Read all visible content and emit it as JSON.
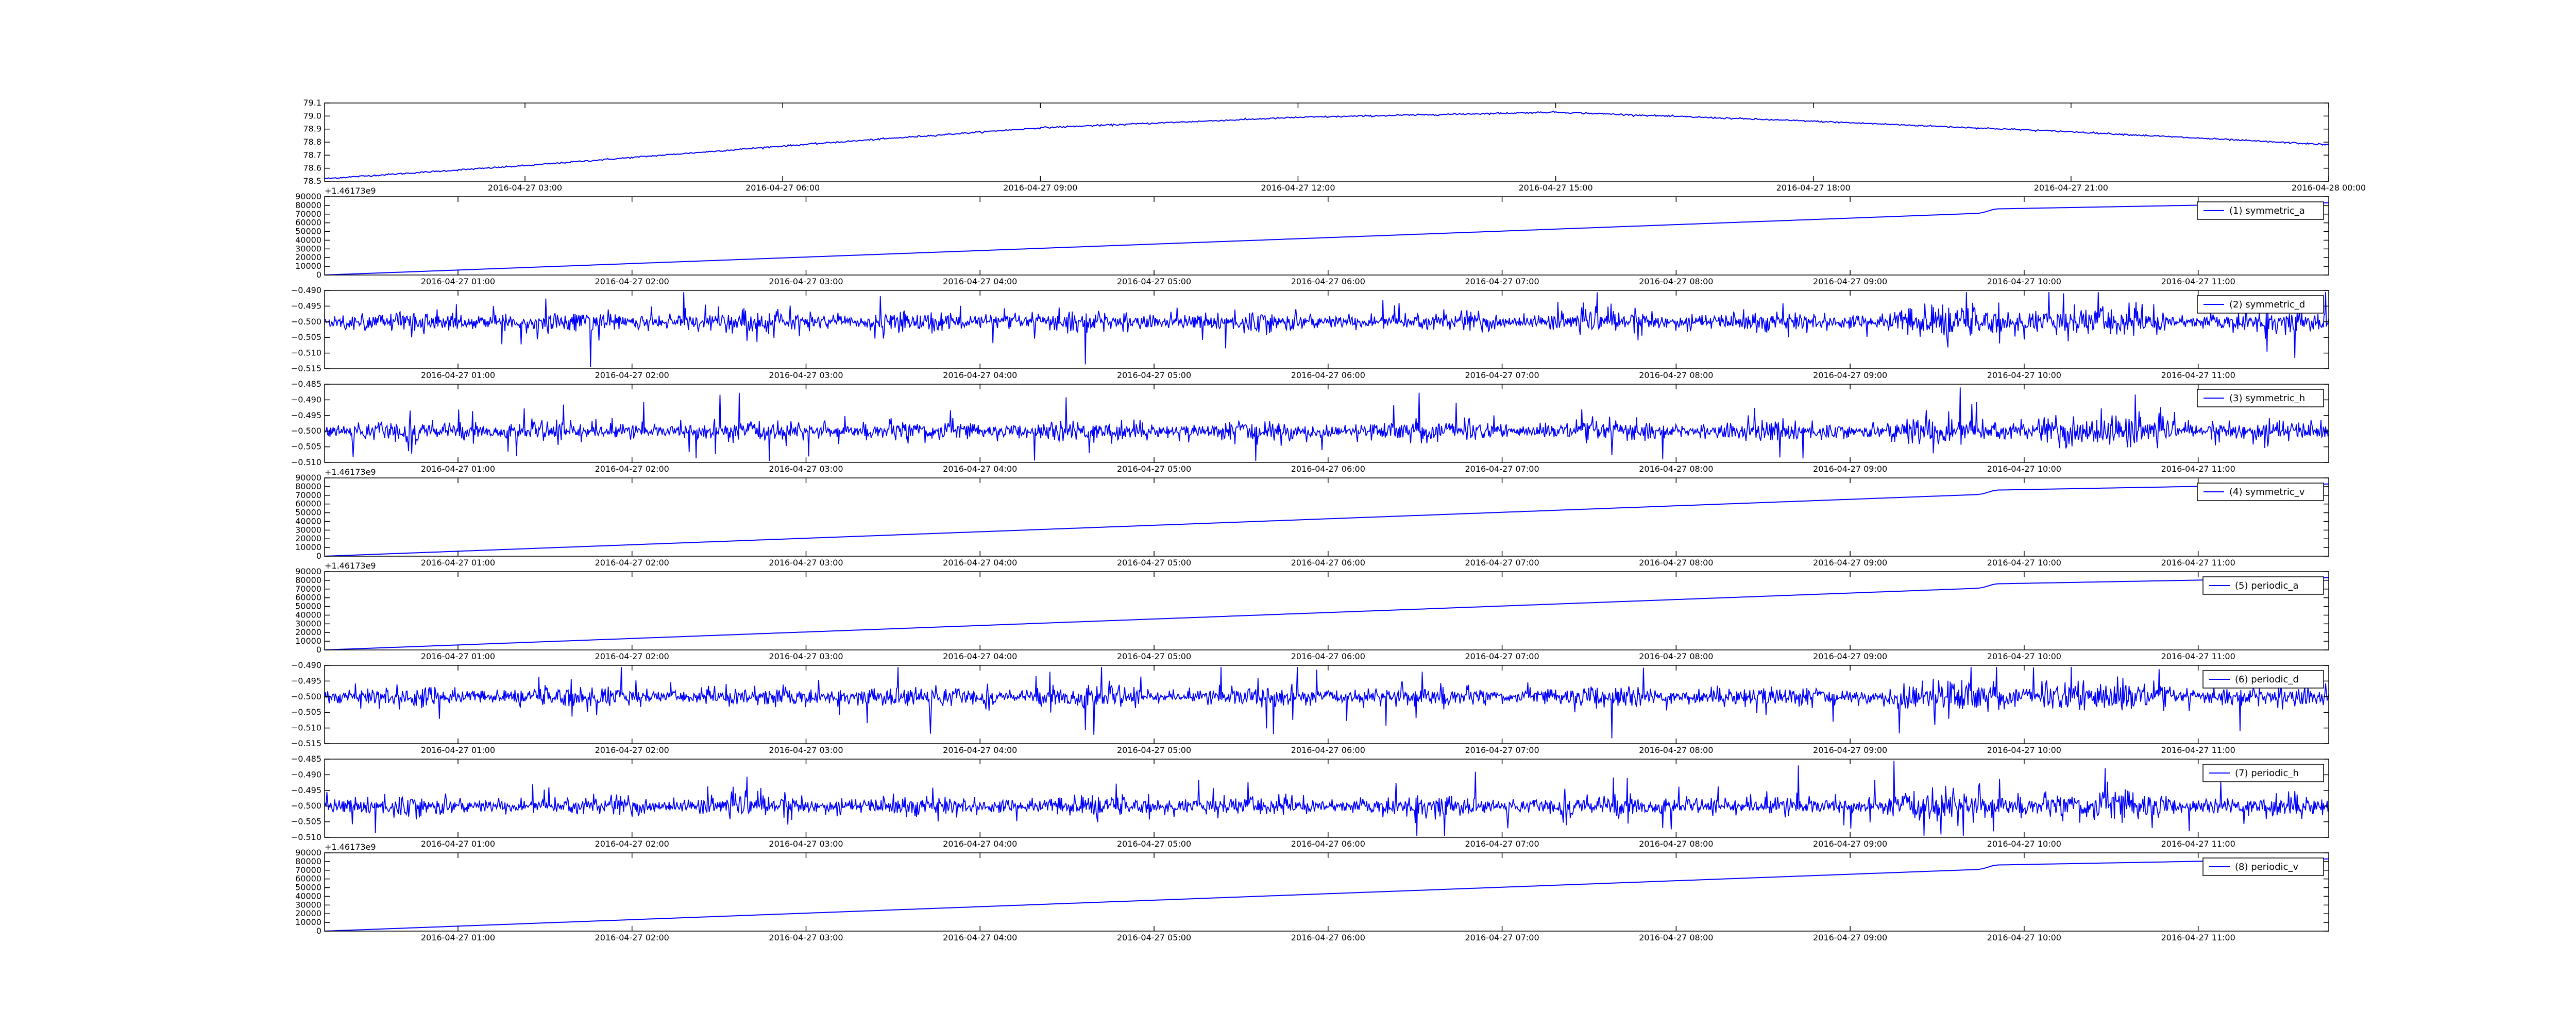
{
  "figure": {
    "background": "#ffffff",
    "line_color": "#0000ff",
    "frame_color": "#000000"
  },
  "chart_data": [
    {
      "type": "line",
      "title": "",
      "xlabel": "",
      "ylabel": "",
      "x_axis": "time",
      "xlim": [
        "2016-04-27 00:40",
        "2016-04-28 00:00"
      ],
      "ylim": [
        78.5,
        79.1
      ],
      "yticks": [
        "78.5",
        "78.6",
        "78.7",
        "78.8",
        "78.9",
        "79.0",
        "79.1"
      ],
      "xticks": [
        "2016-04-27 03:00",
        "2016-04-27 06:00",
        "2016-04-27 09:00",
        "2016-04-27 12:00",
        "2016-04-27 15:00",
        "2016-04-27 18:00",
        "2016-04-27 21:00",
        "2016-04-28 00:00"
      ],
      "offset_label": "+1.46173e9",
      "legend": null,
      "grid": false,
      "signal": "dome",
      "noise": 0.006,
      "series": [
        {
          "x": [
            "2016-04-27 00:40",
            "2016-04-27 03:00",
            "2016-04-27 06:00",
            "2016-04-27 09:00",
            "2016-04-27 12:00",
            "2016-04-27 15:00",
            "2016-04-27 18:00",
            "2016-04-27 19:30",
            "2016-04-27 21:00",
            "2016-04-28 00:00"
          ],
          "y": [
            78.52,
            78.62,
            78.77,
            78.91,
            78.99,
            79.03,
            78.96,
            78.92,
            78.88,
            78.78
          ]
        }
      ]
    },
    {
      "type": "line",
      "title": "",
      "xlabel": "",
      "ylabel": "",
      "x_axis": "time",
      "xlim": [
        "2016-04-27 00:14",
        "2016-04-27 11:45"
      ],
      "ylim": [
        0,
        90000
      ],
      "yticks": [
        "0",
        "10000",
        "20000",
        "30000",
        "40000",
        "50000",
        "60000",
        "70000",
        "80000",
        "90000"
      ],
      "xticks": [
        "2016-04-27 01:00",
        "2016-04-27 02:00",
        "2016-04-27 03:00",
        "2016-04-27 04:00",
        "2016-04-27 05:00",
        "2016-04-27 06:00",
        "2016-04-27 07:00",
        "2016-04-27 08:00",
        "2016-04-27 09:00",
        "2016-04-27 10:00",
        "2016-04-27 11:00"
      ],
      "offset_label": "",
      "legend": "top-right",
      "grid": false,
      "signal": "ramp",
      "series": [
        {
          "name": "(1) symmetric_a",
          "x": [
            "2016-04-27 00:14",
            "2016-04-27 09:45",
            "2016-04-27 09:50",
            "2016-04-27 11:45"
          ],
          "y": [
            0,
            71000,
            76000,
            83000
          ]
        }
      ]
    },
    {
      "type": "line",
      "title": "",
      "xlabel": "",
      "ylabel": "",
      "x_axis": "time",
      "xlim": [
        "2016-04-27 00:14",
        "2016-04-27 11:45"
      ],
      "ylim": [
        -0.515,
        -0.49
      ],
      "yticks": [
        "−0.515",
        "−0.510",
        "−0.505",
        "−0.500",
        "−0.495",
        "−0.490"
      ],
      "xticks": [
        "2016-04-27 01:00",
        "2016-04-27 02:00",
        "2016-04-27 03:00",
        "2016-04-27 04:00",
        "2016-04-27 05:00",
        "2016-04-27 06:00",
        "2016-04-27 07:00",
        "2016-04-27 08:00",
        "2016-04-27 09:00",
        "2016-04-27 10:00",
        "2016-04-27 11:00"
      ],
      "offset_label": "",
      "legend": "top-right",
      "grid": false,
      "signal": "noise",
      "baseline": -0.5,
      "amplitude": 0.008,
      "series": [
        {
          "name": "(2) symmetric_d"
        }
      ]
    },
    {
      "type": "line",
      "title": "",
      "xlabel": "",
      "ylabel": "",
      "x_axis": "time",
      "xlim": [
        "2016-04-27 00:14",
        "2016-04-27 11:45"
      ],
      "ylim": [
        -0.51,
        -0.485
      ],
      "yticks": [
        "−0.510",
        "−0.505",
        "−0.500",
        "−0.495",
        "−0.490",
        "−0.485"
      ],
      "xticks": [
        "2016-04-27 01:00",
        "2016-04-27 02:00",
        "2016-04-27 03:00",
        "2016-04-27 04:00",
        "2016-04-27 05:00",
        "2016-04-27 06:00",
        "2016-04-27 07:00",
        "2016-04-27 08:00",
        "2016-04-27 09:00",
        "2016-04-27 10:00",
        "2016-04-27 11:00"
      ],
      "offset_label": "+1.46173e9",
      "legend": "top-right",
      "grid": false,
      "signal": "noise",
      "baseline": -0.5,
      "amplitude": 0.008,
      "series": [
        {
          "name": "(3) symmetric_h"
        }
      ]
    },
    {
      "type": "line",
      "title": "",
      "xlabel": "",
      "ylabel": "",
      "x_axis": "time",
      "xlim": [
        "2016-04-27 00:14",
        "2016-04-27 11:45"
      ],
      "ylim": [
        0,
        90000
      ],
      "yticks": [
        "0",
        "10000",
        "20000",
        "30000",
        "40000",
        "50000",
        "60000",
        "70000",
        "80000",
        "90000"
      ],
      "xticks": [
        "2016-04-27 01:00",
        "2016-04-27 02:00",
        "2016-04-27 03:00",
        "2016-04-27 04:00",
        "2016-04-27 05:00",
        "2016-04-27 06:00",
        "2016-04-27 07:00",
        "2016-04-27 08:00",
        "2016-04-27 09:00",
        "2016-04-27 10:00",
        "2016-04-27 11:00"
      ],
      "offset_label": "+1.46173e9",
      "legend": "top-right",
      "grid": false,
      "signal": "ramp",
      "series": [
        {
          "name": "(4) symmetric_v",
          "x": [
            "2016-04-27 00:14",
            "2016-04-27 09:45",
            "2016-04-27 09:50",
            "2016-04-27 11:45"
          ],
          "y": [
            0,
            71000,
            76000,
            83000
          ]
        }
      ]
    },
    {
      "type": "line",
      "title": "",
      "xlabel": "",
      "ylabel": "",
      "x_axis": "time",
      "xlim": [
        "2016-04-27 00:14",
        "2016-04-27 11:45"
      ],
      "ylim": [
        0,
        90000
      ],
      "yticks": [
        "0",
        "10000",
        "20000",
        "30000",
        "40000",
        "50000",
        "60000",
        "70000",
        "80000",
        "90000"
      ],
      "xticks": [
        "2016-04-27 01:00",
        "2016-04-27 02:00",
        "2016-04-27 03:00",
        "2016-04-27 04:00",
        "2016-04-27 05:00",
        "2016-04-27 06:00",
        "2016-04-27 07:00",
        "2016-04-27 08:00",
        "2016-04-27 09:00",
        "2016-04-27 10:00",
        "2016-04-27 11:00"
      ],
      "offset_label": "",
      "legend": "top-right",
      "grid": false,
      "signal": "ramp",
      "series": [
        {
          "name": "(5) periodic_a",
          "x": [
            "2016-04-27 00:14",
            "2016-04-27 09:45",
            "2016-04-27 09:50",
            "2016-04-27 11:45"
          ],
          "y": [
            0,
            71000,
            76000,
            83000
          ]
        }
      ]
    },
    {
      "type": "line",
      "title": "",
      "xlabel": "",
      "ylabel": "",
      "x_axis": "time",
      "xlim": [
        "2016-04-27 00:14",
        "2016-04-27 11:45"
      ],
      "ylim": [
        -0.515,
        -0.49
      ],
      "yticks": [
        "−0.515",
        "−0.510",
        "−0.505",
        "−0.500",
        "−0.495",
        "−0.490"
      ],
      "xticks": [
        "2016-04-27 01:00",
        "2016-04-27 02:00",
        "2016-04-27 03:00",
        "2016-04-27 04:00",
        "2016-04-27 05:00",
        "2016-04-27 06:00",
        "2016-04-27 07:00",
        "2016-04-27 08:00",
        "2016-04-27 09:00",
        "2016-04-27 10:00",
        "2016-04-27 11:00"
      ],
      "offset_label": "",
      "legend": "top-right",
      "grid": false,
      "signal": "noise",
      "baseline": -0.5,
      "amplitude": 0.008,
      "series": [
        {
          "name": "(6) periodic_d"
        }
      ]
    },
    {
      "type": "line",
      "title": "",
      "xlabel": "",
      "ylabel": "",
      "x_axis": "time",
      "xlim": [
        "2016-04-27 00:14",
        "2016-04-27 11:45"
      ],
      "ylim": [
        -0.51,
        -0.485
      ],
      "yticks": [
        "−0.510",
        "−0.505",
        "−0.500",
        "−0.495",
        "−0.490",
        "−0.485"
      ],
      "xticks": [
        "2016-04-27 01:00",
        "2016-04-27 02:00",
        "2016-04-27 03:00",
        "2016-04-27 04:00",
        "2016-04-27 05:00",
        "2016-04-27 06:00",
        "2016-04-27 07:00",
        "2016-04-27 08:00",
        "2016-04-27 09:00",
        "2016-04-27 10:00",
        "2016-04-27 11:00"
      ],
      "offset_label": "+1.46173e9",
      "legend": "top-right",
      "grid": false,
      "signal": "noise",
      "baseline": -0.5,
      "amplitude": 0.008,
      "series": [
        {
          "name": "(7) periodic_h"
        }
      ]
    },
    {
      "type": "line",
      "title": "",
      "xlabel": "",
      "ylabel": "",
      "x_axis": "time",
      "xlim": [
        "2016-04-27 00:14",
        "2016-04-27 11:45"
      ],
      "ylim": [
        0,
        90000
      ],
      "yticks": [
        "0",
        "10000",
        "20000",
        "30000",
        "40000",
        "50000",
        "60000",
        "70000",
        "80000",
        "90000"
      ],
      "xticks": [
        "2016-04-27 01:00",
        "2016-04-27 02:00",
        "2016-04-27 03:00",
        "2016-04-27 04:00",
        "2016-04-27 05:00",
        "2016-04-27 06:00",
        "2016-04-27 07:00",
        "2016-04-27 08:00",
        "2016-04-27 09:00",
        "2016-04-27 10:00",
        "2016-04-27 11:00"
      ],
      "offset_label": "",
      "legend": "top-right",
      "grid": false,
      "signal": "ramp",
      "series": [
        {
          "name": "(8) periodic_v",
          "x": [
            "2016-04-27 00:14",
            "2016-04-27 09:45",
            "2016-04-27 09:50",
            "2016-04-27 11:45"
          ],
          "y": [
            0,
            71000,
            76000,
            83000
          ]
        }
      ]
    }
  ]
}
